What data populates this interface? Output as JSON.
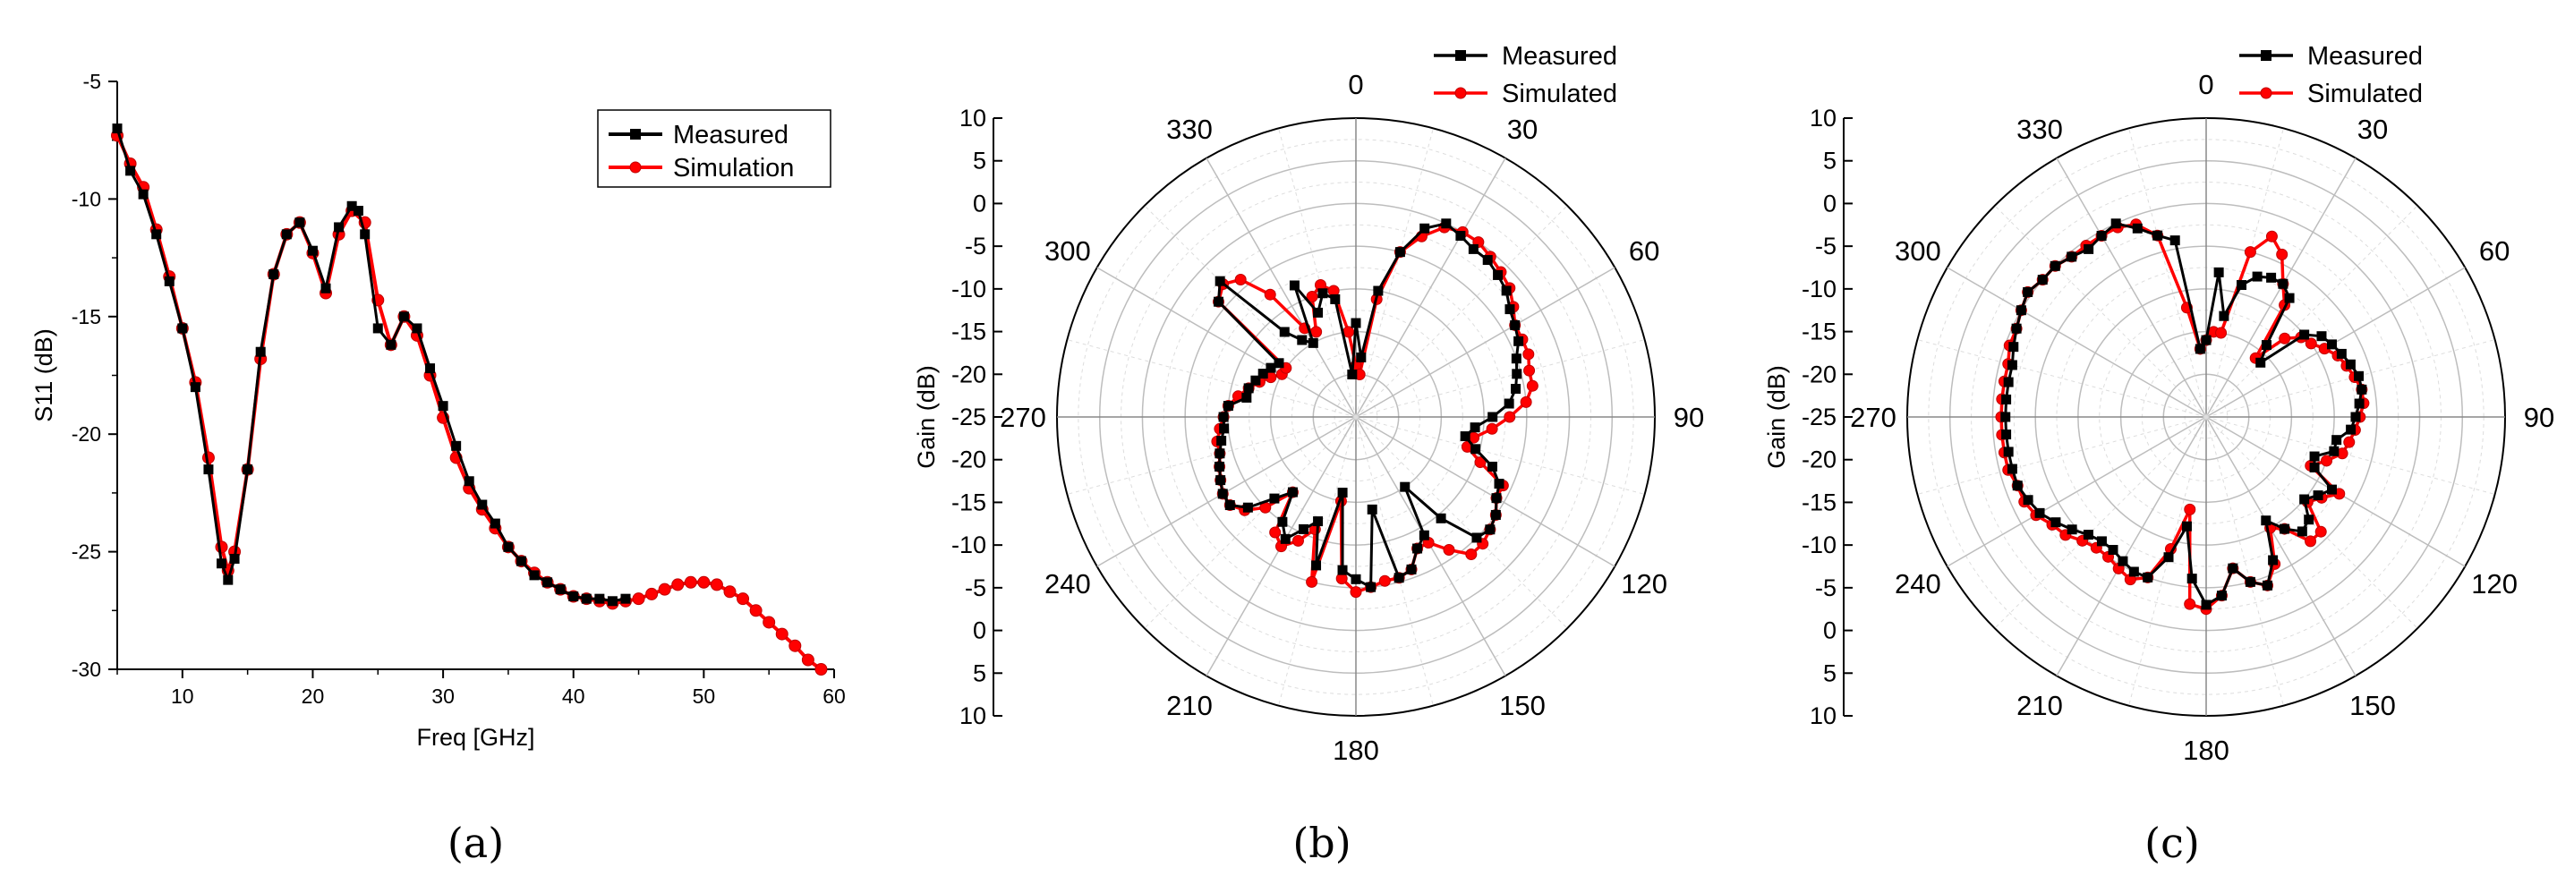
{
  "colors": {
    "measured": "#000000",
    "simulated": "#ff0000",
    "grid": "#bdbdbd",
    "grid_minor": "#dddddd"
  },
  "chart_data": [
    {
      "type": "line",
      "panel_label": "(a)",
      "title": "",
      "xlabel": "Freq [GHz]",
      "ylabel": "S11 (dB)",
      "xlim": [
        5,
        60
      ],
      "ylim": [
        -30,
        -5
      ],
      "xticks": [
        10,
        20,
        30,
        40,
        50,
        60
      ],
      "yticks": [
        -5,
        -10,
        -15,
        -20,
        -25,
        -30
      ],
      "legend": {
        "position": "top-right",
        "entries": [
          "Measured",
          "Simulation"
        ]
      },
      "series": [
        {
          "name": "Measured",
          "marker": "square",
          "x": [
            5,
            6,
            7,
            8,
            9,
            10,
            11,
            12,
            13,
            13.5,
            14,
            15,
            16,
            17,
            18,
            19,
            20,
            21,
            22,
            23,
            23.5,
            24,
            25,
            26,
            27,
            28,
            29,
            30,
            31,
            32,
            33,
            34,
            35,
            36,
            37,
            38,
            39,
            40,
            41,
            42,
            43,
            44
          ],
          "y": [
            -7,
            -8.8,
            -9.8,
            -11.5,
            -13.5,
            -15.5,
            -18,
            -21.5,
            -25.5,
            -26.2,
            -25.3,
            -21.5,
            -16.5,
            -13.2,
            -11.5,
            -11,
            -12.2,
            -13.8,
            -11.2,
            -10.3,
            -10.5,
            -11.5,
            -15.5,
            -16.2,
            -15,
            -15.5,
            -17.2,
            -18.8,
            -20.5,
            -22,
            -23,
            -23.8,
            -24.8,
            -25.4,
            -26,
            -26.3,
            -26.6,
            -26.9,
            -27,
            -27,
            -27.1,
            -27
          ]
        },
        {
          "name": "Simulation",
          "marker": "circle",
          "x": [
            5,
            6,
            7,
            8,
            9,
            10,
            11,
            12,
            13,
            13.5,
            14,
            15,
            16,
            17,
            18,
            19,
            20,
            21,
            22,
            23,
            24,
            25,
            26,
            27,
            28,
            29,
            30,
            31,
            32,
            33,
            34,
            35,
            36,
            37,
            38,
            39,
            40,
            41,
            42,
            43,
            44,
            45,
            46,
            47,
            48,
            49,
            50,
            51,
            52,
            53,
            54,
            55,
            56,
            57,
            58,
            59
          ],
          "y": [
            -7.3,
            -8.5,
            -9.5,
            -11.3,
            -13.3,
            -15.5,
            -17.8,
            -21,
            -24.8,
            -25.8,
            -25,
            -21.5,
            -16.8,
            -13.2,
            -11.5,
            -11,
            -12.3,
            -14,
            -11.5,
            -10.5,
            -11,
            -14.3,
            -16.2,
            -15,
            -15.8,
            -17.5,
            -19.3,
            -21,
            -22.3,
            -23.2,
            -24,
            -24.8,
            -25.4,
            -25.9,
            -26.3,
            -26.6,
            -26.9,
            -27,
            -27.1,
            -27.2,
            -27.1,
            -27,
            -26.8,
            -26.6,
            -26.4,
            -26.3,
            -26.3,
            -26.4,
            -26.7,
            -27,
            -27.5,
            -28,
            -28.5,
            -29,
            -29.6,
            -30
          ]
        }
      ]
    },
    {
      "type": "polar",
      "panel_label": "(b)",
      "rlabel": "Gain (dB)",
      "rlim": [
        -25,
        10
      ],
      "radial_tick_labels": [
        "10",
        "5",
        "0",
        "-5",
        "-10",
        "-15",
        "-20",
        "-25",
        "-20",
        "-15",
        "-10",
        "-5",
        "0",
        "5",
        "10"
      ],
      "angle_labels": [
        "0",
        "30",
        "60",
        "90",
        "120",
        "150",
        "180",
        "210",
        "240",
        "270",
        "300",
        "330"
      ],
      "legend": {
        "position": "top",
        "entries": [
          "Measured",
          "Simulated"
        ]
      },
      "series": [
        {
          "name": "Measured",
          "marker": "square",
          "theta": [
            0,
            5,
            10,
            15,
            20,
            25,
            30,
            35,
            40,
            45,
            50,
            55,
            60,
            65,
            70,
            75,
            80,
            85,
            90,
            95,
            100,
            105,
            110,
            115,
            120,
            125,
            130,
            135,
            140,
            145,
            150,
            155,
            160,
            165,
            170,
            175,
            180,
            185,
            190,
            195,
            200,
            205,
            210,
            215,
            220,
            225,
            230,
            235,
            240,
            245,
            250,
            255,
            260,
            265,
            270,
            275,
            280,
            285,
            290,
            295,
            300,
            305,
            310,
            315,
            320,
            325,
            330,
            335,
            340,
            345,
            350,
            355
          ],
          "r": [
            -14,
            -18,
            -10,
            -5,
            -1.5,
            0,
            -0.5,
            -1,
            -1,
            -1.5,
            -2,
            -3,
            -3.5,
            -4,
            -5,
            -5.5,
            -6,
            -7,
            -9,
            -11,
            -12,
            -10.5,
            -8,
            -6.5,
            -6,
            -5,
            -4.5,
            -5,
            -9.5,
            -15,
            -9,
            -8,
            -6,
            -5.5,
            -14,
            -5,
            -6,
            -7,
            -16,
            -7,
            -12,
            -10.5,
            -8.5,
            -10,
            -13.5,
            -11.5,
            -8.5,
            -7,
            -7,
            -7.5,
            -8,
            -8.5,
            -9,
            -9.5,
            -9.5,
            -10,
            -12,
            -12,
            -12.5,
            -13,
            -13.5,
            -14,
            -4,
            -2.5,
            -12,
            -14,
            -15,
            -8,
            -12,
            -10,
            -11,
            -20
          ]
        },
        {
          "name": "Simulated",
          "marker": "circle",
          "theta": [
            0,
            5,
            10,
            15,
            20,
            25,
            30,
            35,
            40,
            45,
            50,
            55,
            60,
            65,
            70,
            75,
            80,
            85,
            90,
            95,
            100,
            105,
            110,
            115,
            120,
            125,
            130,
            135,
            140,
            145,
            150,
            155,
            160,
            165,
            170,
            175,
            180,
            185,
            190,
            195,
            200,
            205,
            210,
            215,
            220,
            225,
            230,
            235,
            240,
            245,
            250,
            255,
            260,
            265,
            270,
            275,
            280,
            285,
            290,
            295,
            300,
            305,
            310,
            315,
            320,
            325,
            330,
            335,
            340,
            345,
            350,
            355
          ],
          "r": [
            -19,
            -20,
            -11,
            -5,
            -2.5,
            -0.5,
            0,
            0,
            -0.5,
            -1,
            -1.5,
            -2.5,
            -3.5,
            -3.5,
            -3.5,
            -4,
            -4,
            -5,
            -7,
            -9,
            -11,
            -11.5,
            -9.5,
            -6,
            -6,
            -5,
            -4.5,
            -4,
            -4,
            -6,
            -8,
            -8,
            -6,
            -5.5,
            -5.5,
            -5,
            -4.5,
            -6,
            -15,
            -5,
            -11,
            -9,
            -7.5,
            -8.5,
            -13.5,
            -10,
            -8,
            -7,
            -7,
            -7.5,
            -8,
            -8.5,
            -8.5,
            -9,
            -9.5,
            -10,
            -11,
            -12,
            -13,
            -14,
            -15,
            -15,
            -4,
            -3,
            -4,
            -7.5,
            -13,
            -14,
            -10,
            -9,
            -10,
            -15
          ]
        }
      ]
    },
    {
      "type": "polar",
      "panel_label": "(c)",
      "rlabel": "Gain (dB)",
      "rlim": [
        -25,
        10
      ],
      "radial_tick_labels": [
        "10",
        "5",
        "0",
        "-5",
        "-10",
        "-15",
        "-20",
        "-25",
        "-20",
        "-15",
        "-10",
        "-5",
        "0",
        "5",
        "10"
      ],
      "angle_labels": [
        "0",
        "30",
        "60",
        "90",
        "120",
        "150",
        "180",
        "210",
        "240",
        "270",
        "300",
        "330"
      ],
      "legend": {
        "position": "top",
        "entries": [
          "Measured",
          "Simulated"
        ]
      },
      "series": [
        {
          "name": "Measured",
          "marker": "square",
          "theta": [
            0,
            5,
            10,
            15,
            20,
            25,
            30,
            35,
            40,
            45,
            50,
            55,
            60,
            65,
            70,
            75,
            80,
            85,
            90,
            95,
            100,
            105,
            110,
            115,
            120,
            125,
            130,
            135,
            140,
            145,
            150,
            155,
            160,
            165,
            170,
            175,
            180,
            185,
            190,
            195,
            200,
            205,
            210,
            215,
            220,
            225,
            230,
            235,
            240,
            245,
            250,
            255,
            260,
            265,
            270,
            275,
            280,
            285,
            290,
            295,
            300,
            305,
            310,
            315,
            320,
            325,
            330,
            335,
            340,
            345,
            350,
            355
          ],
          "r": [
            -16,
            -8,
            -13,
            -9,
            -7.5,
            -7,
            -7,
            -8,
            -14,
            -16,
            -10,
            -8.5,
            -8,
            -7.5,
            -7,
            -6.5,
            -6.5,
            -7,
            -7.5,
            -8,
            -9.5,
            -9.5,
            -11.5,
            -11,
            -8,
            -9,
            -10,
            -8,
            -7.5,
            -9,
            -11,
            -6.5,
            -4,
            -5,
            -7,
            -4,
            -3,
            -6,
            -12,
            -8,
            -5,
            -5,
            -5.5,
            -6,
            -6,
            -5.5,
            -4.5,
            -3.5,
            -2.5,
            -2,
            -1.5,
            -1.5,
            -1.5,
            -1.5,
            -1.5,
            -1.5,
            -1.5,
            -1.5,
            -1,
            -0.5,
            0,
            0.5,
            0,
            0,
            -0.5,
            -1,
            -0.5,
            0,
            -1.5,
            -3,
            -4,
            -17
          ]
        },
        {
          "name": "Simulated",
          "marker": "circle",
          "theta": [
            0,
            5,
            10,
            15,
            20,
            25,
            30,
            35,
            40,
            45,
            50,
            55,
            60,
            65,
            70,
            75,
            80,
            85,
            90,
            95,
            100,
            105,
            110,
            115,
            120,
            125,
            130,
            135,
            140,
            145,
            150,
            155,
            160,
            165,
            170,
            175,
            180,
            185,
            190,
            195,
            200,
            205,
            210,
            215,
            220,
            225,
            230,
            235,
            240,
            245,
            250,
            255,
            260,
            265,
            270,
            275,
            280,
            285,
            290,
            295,
            300,
            305,
            310,
            315,
            320,
            325,
            330,
            335,
            340,
            345,
            350,
            355
          ],
          "r": [
            -16,
            -15,
            -15,
            -5,
            -2.5,
            -4,
            -7,
            -9,
            -16,
            -12,
            -10.5,
            -10,
            -9,
            -8,
            -7.5,
            -7,
            -6.5,
            -6.5,
            -7,
            -7.5,
            -8,
            -8.5,
            -10,
            -11.5,
            -7,
            -8.5,
            -9.5,
            -6,
            -6,
            -9,
            -10,
            -6,
            -4,
            -5,
            -7,
            -4,
            -2.5,
            -3,
            -14,
            -9,
            -5,
            -4,
            -4.5,
            -5,
            -5,
            -4.5,
            -3.5,
            -3,
            -2,
            -1.5,
            -1.5,
            -1,
            -1,
            -1,
            -1,
            -1,
            -1,
            -1,
            -0.5,
            -0.5,
            0,
            0.5,
            0,
            0,
            -0.5,
            -0.5,
            -0.5,
            -0.5,
            -1,
            -3,
            -12,
            -17
          ]
        }
      ]
    }
  ]
}
